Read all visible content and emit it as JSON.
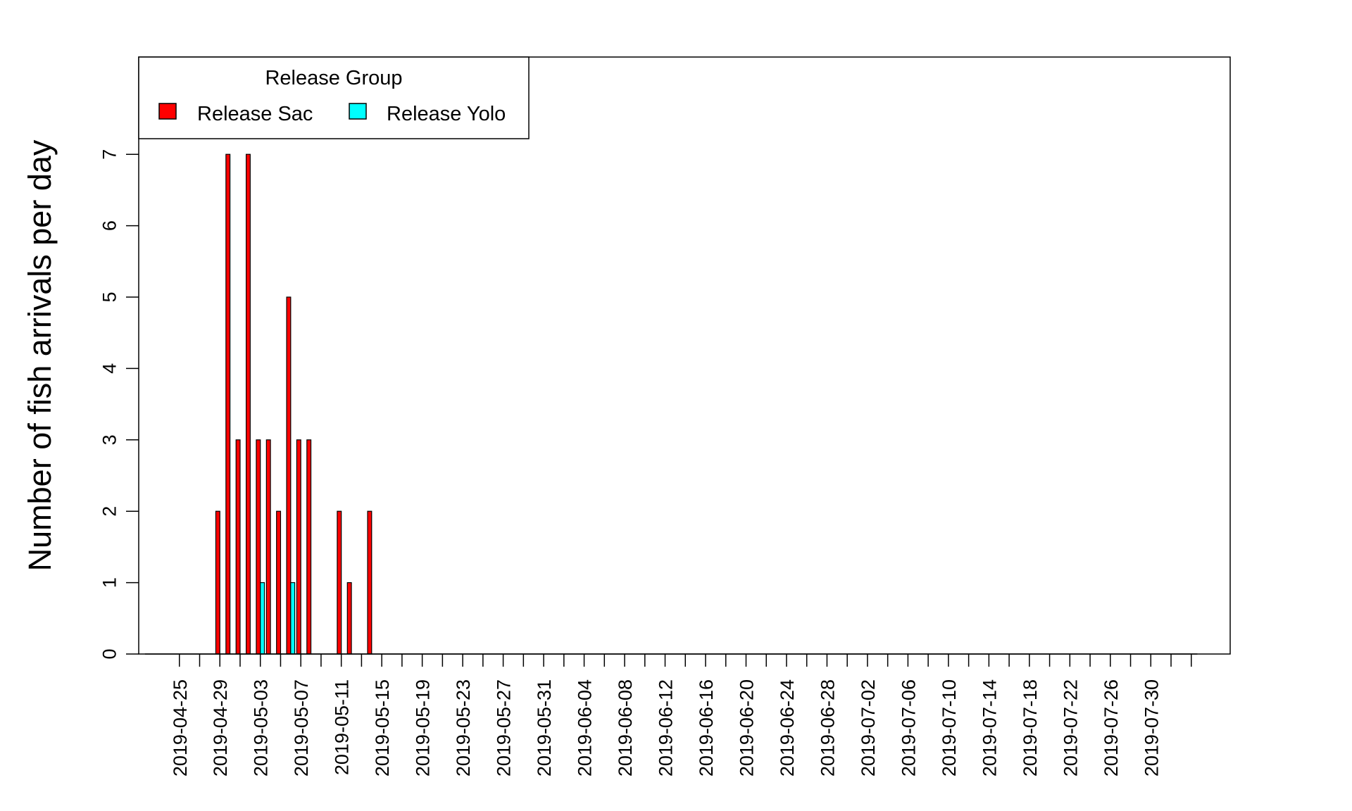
{
  "chart_data": {
    "type": "bar",
    "ylabel": "Number of fish arrivals per day",
    "xlabel": "",
    "ylim": [
      0,
      8
    ],
    "y_ticks": [
      0,
      1,
      2,
      3,
      4,
      5,
      6,
      7
    ],
    "grid": false,
    "legend": {
      "title": "Release Group",
      "placement": "top-left",
      "entries": [
        {
          "label": "Release Sac",
          "color": "#ff0000"
        },
        {
          "label": "Release Yolo",
          "color": "#00ffff"
        }
      ]
    },
    "x_tick_labels": [
      "2019-04-25",
      "2019-04-29",
      "2019-05-03",
      "2019-05-07",
      "2019-05-11",
      "2019-05-15",
      "2019-05-19",
      "2019-05-23",
      "2019-05-27",
      "2019-05-31",
      "2019-06-04",
      "2019-06-08",
      "2019-06-12",
      "2019-06-16",
      "2019-06-20",
      "2019-06-24",
      "2019-06-28",
      "2019-07-02",
      "2019-07-06",
      "2019-07-10",
      "2019-07-14",
      "2019-07-18",
      "2019-07-22",
      "2019-07-26",
      "2019-07-30"
    ],
    "categories": [
      "2019-04-25",
      "2019-04-26",
      "2019-04-27",
      "2019-04-28",
      "2019-04-29",
      "2019-04-30",
      "2019-05-01",
      "2019-05-02",
      "2019-05-03",
      "2019-05-04",
      "2019-05-05",
      "2019-05-06",
      "2019-05-07",
      "2019-05-08",
      "2019-05-09",
      "2019-05-10",
      "2019-05-11",
      "2019-05-12",
      "2019-05-13",
      "2019-05-14",
      "2019-05-15",
      "2019-05-16",
      "2019-05-17",
      "2019-05-18",
      "2019-05-19",
      "2019-05-20",
      "2019-05-21",
      "2019-05-22",
      "2019-05-23",
      "2019-05-24",
      "2019-05-25",
      "2019-05-26",
      "2019-05-27",
      "2019-05-28",
      "2019-05-29",
      "2019-05-30",
      "2019-05-31",
      "2019-06-01",
      "2019-06-02",
      "2019-06-03",
      "2019-06-04",
      "2019-06-05",
      "2019-06-06",
      "2019-06-07",
      "2019-06-08",
      "2019-06-09",
      "2019-06-10",
      "2019-06-11",
      "2019-06-12",
      "2019-06-13",
      "2019-06-14",
      "2019-06-15",
      "2019-06-16",
      "2019-06-17",
      "2019-06-18",
      "2019-06-19",
      "2019-06-20",
      "2019-06-21",
      "2019-06-22",
      "2019-06-23",
      "2019-06-24",
      "2019-06-25",
      "2019-06-26",
      "2019-06-27",
      "2019-06-28",
      "2019-06-29",
      "2019-06-30",
      "2019-07-01",
      "2019-07-02",
      "2019-07-03",
      "2019-07-04",
      "2019-07-05",
      "2019-07-06",
      "2019-07-07",
      "2019-07-08",
      "2019-07-09",
      "2019-07-10",
      "2019-07-11",
      "2019-07-12",
      "2019-07-13",
      "2019-07-14",
      "2019-07-15",
      "2019-07-16",
      "2019-07-17",
      "2019-07-18",
      "2019-07-19",
      "2019-07-20",
      "2019-07-21",
      "2019-07-22",
      "2019-07-23",
      "2019-07-24",
      "2019-07-25",
      "2019-07-26",
      "2019-07-27",
      "2019-07-28",
      "2019-07-29",
      "2019-07-30",
      "2019-07-31",
      "2019-08-01",
      "2019-08-02",
      "2019-08-03"
    ],
    "series": [
      {
        "name": "Release Sac",
        "color": "#ff0000",
        "values": [
          0,
          0,
          0,
          0,
          2,
          7,
          3,
          7,
          3,
          3,
          2,
          5,
          3,
          3,
          0,
          0,
          2,
          1,
          0,
          2,
          0,
          0,
          0,
          0,
          0,
          0,
          0,
          0,
          0,
          0,
          0,
          0,
          0,
          0,
          0,
          0,
          0,
          0,
          0,
          0,
          0,
          0,
          0,
          0,
          0,
          0,
          0,
          0,
          0,
          0,
          0,
          0,
          0,
          0,
          0,
          0,
          0,
          0,
          0,
          0,
          0,
          0,
          0,
          0,
          0,
          0,
          0,
          0,
          0,
          0,
          0,
          0,
          0,
          0,
          0,
          0,
          0,
          0,
          0,
          0,
          0,
          0,
          0,
          0,
          0,
          0,
          0,
          0,
          0,
          0,
          0,
          0,
          0,
          0,
          0,
          0,
          0,
          0,
          0,
          0,
          0
        ]
      },
      {
        "name": "Release Yolo",
        "color": "#00ffff",
        "values": [
          0,
          0,
          0,
          0,
          0,
          0,
          0,
          0,
          1,
          0,
          0,
          1,
          0,
          0,
          0,
          0,
          0,
          0,
          0,
          0,
          0,
          0,
          0,
          0,
          0,
          0,
          0,
          0,
          0,
          0,
          0,
          0,
          0,
          0,
          0,
          0,
          0,
          0,
          0,
          0,
          0,
          0,
          0,
          0,
          0,
          0,
          0,
          0,
          0,
          0,
          0,
          0,
          0,
          0,
          0,
          0,
          0,
          0,
          0,
          0,
          0,
          0,
          0,
          0,
          0,
          0,
          0,
          0,
          0,
          0,
          0,
          0,
          0,
          0,
          0,
          0,
          0,
          0,
          0,
          0,
          0,
          0,
          0,
          0,
          0,
          0,
          0,
          0,
          0,
          0,
          0,
          0,
          0,
          0,
          0,
          0,
          0,
          0,
          0,
          0,
          0
        ]
      }
    ]
  }
}
